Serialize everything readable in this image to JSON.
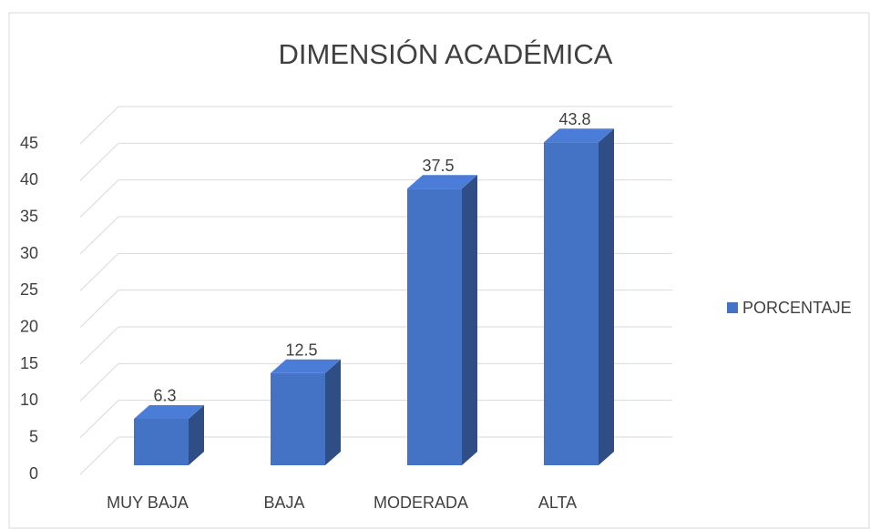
{
  "chart_data": {
    "type": "bar3d",
    "title": "DIMENSIÓN ACADÉMICA",
    "categories": [
      "MUY BAJA",
      "BAJA",
      "MODERADA",
      "ALTA"
    ],
    "series": [
      {
        "name": "PORCENTAJE",
        "color": "#4472c4",
        "values": [
          6.3,
          12.5,
          37.5,
          43.8
        ]
      }
    ],
    "ylim": [
      0,
      45
    ],
    "yticks": [
      0,
      5,
      10,
      15,
      20,
      25,
      30,
      35,
      40,
      45
    ],
    "grid": true,
    "legend": "right"
  }
}
